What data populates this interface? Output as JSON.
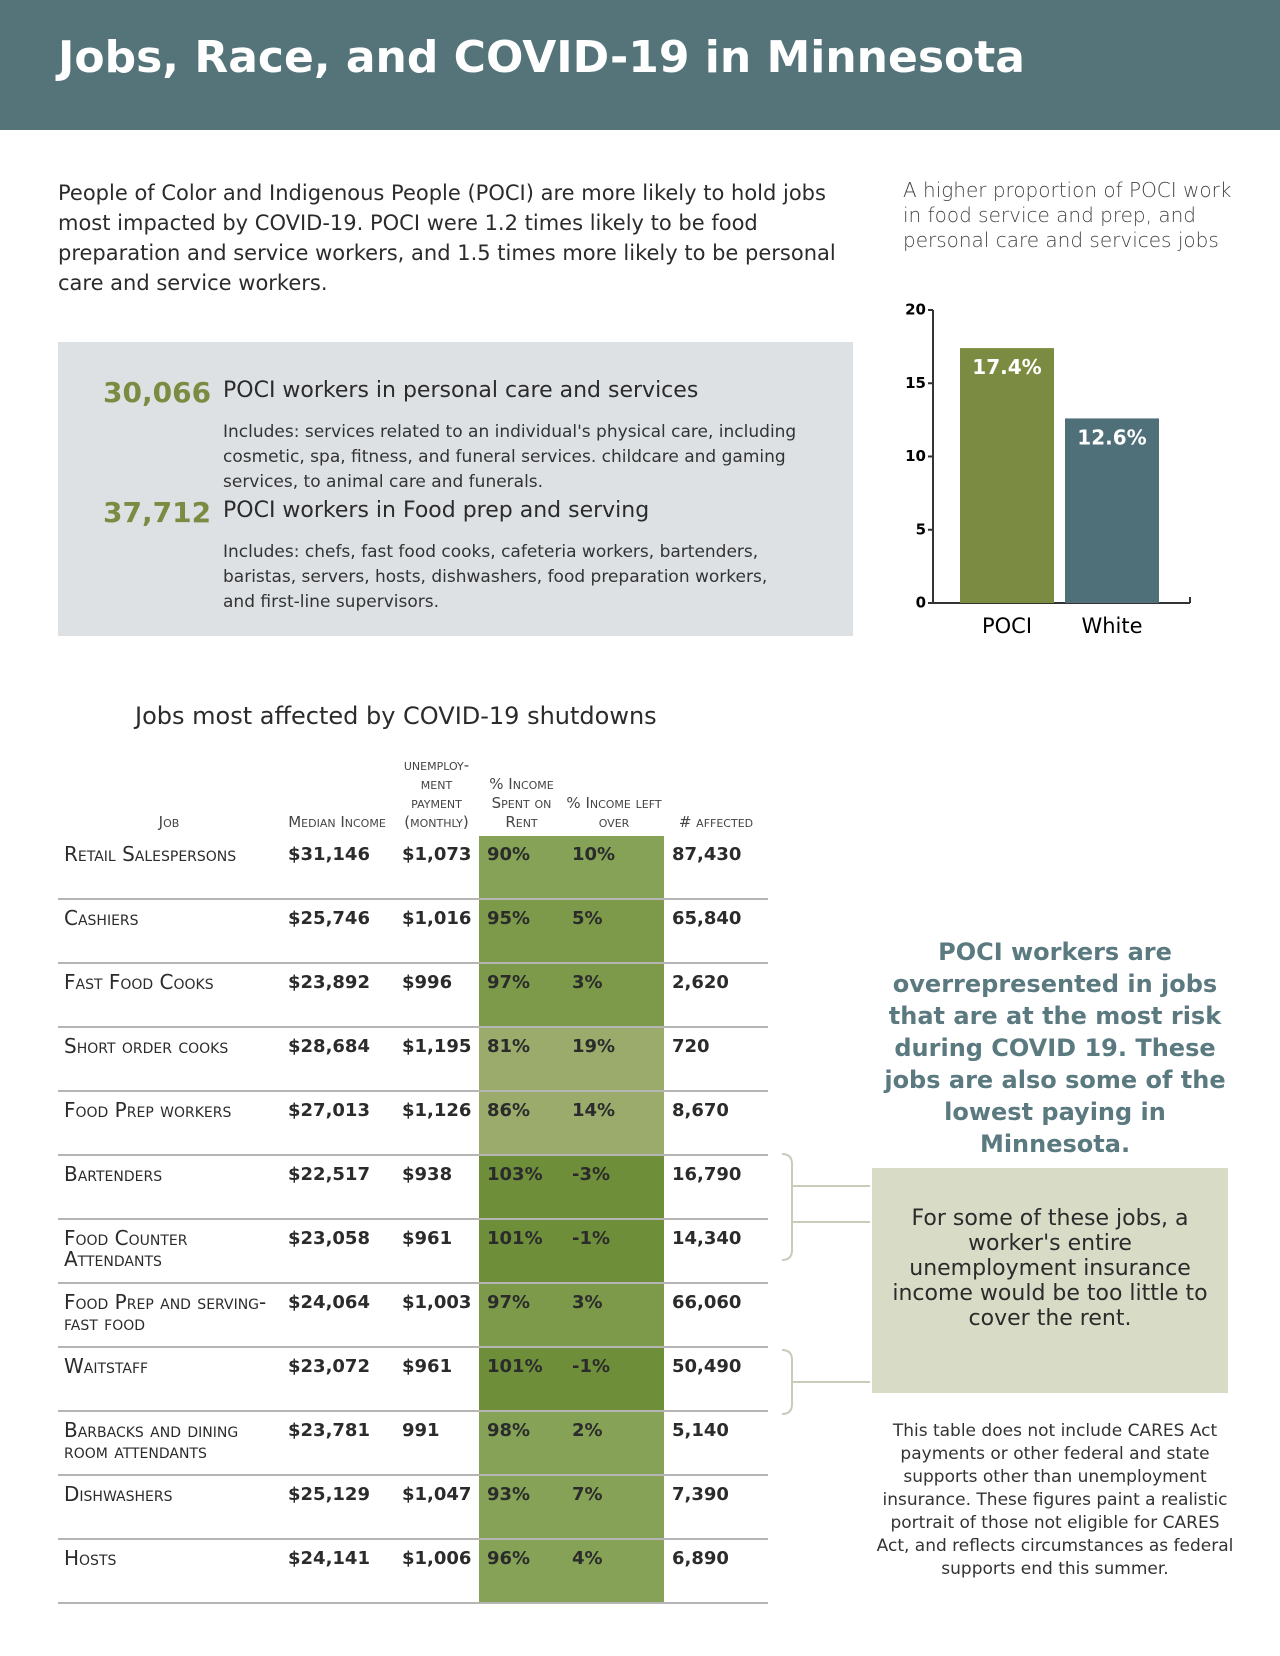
{
  "header": {
    "title": "Jobs, Race, and COVID-19 in Minnesota"
  },
  "intro": "People of Color and Indigenous People (POCI) are more likely to hold jobs most impacted by COVID-19. POCI were 1.2 times likely to be food preparation and service workers, and 1.5 times more likely to be personal care and service workers.",
  "stats": [
    {
      "number": "30,066",
      "label": "POCI workers in personal care and services",
      "description": "Includes: services related to an individual's physical care, including cosmetic, spa, fitness, and funeral services. childcare and gaming services, to animal care and funerals."
    },
    {
      "number": "37,712",
      "label": "POCI workers in Food prep and serving",
      "description": "Includes: chefs, fast food cooks, cafeteria workers, bartenders, baristas, servers, hosts, dishwashers, food preparation workers, and first-line supervisors."
    }
  ],
  "chart_data": {
    "type": "bar",
    "title": "A higher proportion of POCI work in food service and prep, and personal care and services jobs",
    "categories": [
      "POCI",
      "White"
    ],
    "values": [
      17.4,
      12.6
    ],
    "value_labels": [
      "17.4%",
      "12.6%"
    ],
    "colors": [
      "#7b8c42",
      "#507079"
    ],
    "ylim": [
      0,
      20
    ],
    "yticks": [
      0,
      5,
      10,
      15,
      20
    ],
    "grid": false
  },
  "table": {
    "title": "Jobs most affected by COVID-19 shutdowns",
    "columns": [
      "Job",
      "Median Income",
      "unemploy-ment payment (monthly)",
      "% Income Spent on Rent",
      "% Income left over",
      "# affected"
    ],
    "rows": [
      [
        "Retail Salespersons",
        "$31,146",
        "$1,073",
        "90%",
        "10%",
        "87,430"
      ],
      [
        "Cashiers",
        "$25,746",
        "$1,016",
        "95%",
        "5%",
        "65,840"
      ],
      [
        "Fast Food Cooks",
        "$23,892",
        "$996",
        "97%",
        "3%",
        "2,620"
      ],
      [
        "Short order cooks",
        "$28,684",
        "$1,195",
        "81%",
        "19%",
        "720"
      ],
      [
        "Food Prep workers",
        "$27,013",
        "$1,126",
        "86%",
        "14%",
        "8,670"
      ],
      [
        "Bartenders",
        "$22,517",
        "$938",
        "103%",
        "-3%",
        "16,790"
      ],
      [
        "Food Counter Attendants",
        "$23,058",
        "$961",
        "101%",
        "-1%",
        "14,340"
      ],
      [
        "Food Prep and serving- fast food",
        "$24,064",
        "$1,003",
        "97%",
        "3%",
        "66,060"
      ],
      [
        "Waitstaff",
        "$23,072",
        "$961",
        "101%",
        "-1%",
        "50,490"
      ],
      [
        "Barbacks and dining room attendants",
        "$23,781",
        "991",
        "98%",
        "2%",
        "5,140"
      ],
      [
        "Dishwashers",
        "$25,129",
        "$1,047",
        "93%",
        "7%",
        "7,390"
      ],
      [
        "Hosts",
        "$24,141",
        "$1,006",
        "96%",
        "4%",
        "6,890"
      ]
    ]
  },
  "highlight": "POCI workers are overrepresented in jobs that are at the most risk during COVID 19. These jobs are also some of the lowest paying in Minnesota.",
  "callout": "For some of these jobs, a worker's entire unemployment insurance income would be too little to cover the rent.",
  "note": "This table does not include CARES Act payments or other federal and state supports other than unemployment insurance.  These figures paint a realistic portrait of those not eligible for CARES Act, and reflects circumstances as federal supports end this summer."
}
